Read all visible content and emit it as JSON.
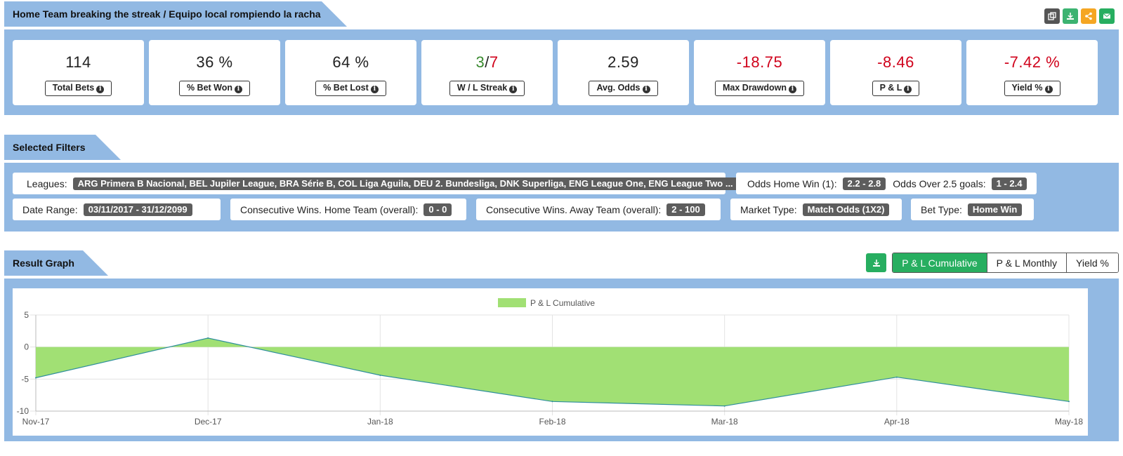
{
  "header": {
    "title": "Home Team breaking the streak / Equipo local rompiendo la racha",
    "toolbar": [
      {
        "icon": "copy-icon",
        "color": "#555555"
      },
      {
        "icon": "download-icon",
        "color": "#3cb371"
      },
      {
        "icon": "share-icon",
        "color": "#f5a623"
      },
      {
        "icon": "email-icon",
        "color": "#27ae60"
      }
    ]
  },
  "stats": {
    "total_bets": {
      "value": "114",
      "label": "Total Bets"
    },
    "bet_won": {
      "value": "36 %",
      "label": "% Bet Won"
    },
    "bet_lost": {
      "value": "64 %",
      "label": "% Bet Lost"
    },
    "streak": {
      "win": "3",
      "sep": "/",
      "loss": "7",
      "label": "W / L Streak"
    },
    "avg_odds": {
      "value": "2.59",
      "label": "Avg. Odds"
    },
    "max_drawdown": {
      "value": "-18.75",
      "label": "Max Drawdown"
    },
    "pl": {
      "value": "-8.46",
      "label": "P & L"
    },
    "yield": {
      "value": "-7.42 %",
      "label": "Yield %"
    }
  },
  "filters": {
    "title": "Selected Filters",
    "leagues_label": "Leagues:",
    "leagues_value": "ARG Primera B Nacional, BEL Jupiler League, BRA Série B, COL Liga Aguila, DEU 2. Bundesliga, DNK Superliga, ENG League One, ENG League Two ...",
    "odds_home_label": "Odds Home Win (1):",
    "odds_home_value": "2.2 - 2.8",
    "odds_over_label": "Odds Over 2.5 goals:",
    "odds_over_value": "1 - 2.4",
    "date_label": "Date Range:",
    "date_value": "03/11/2017 - 31/12/2099",
    "cons_home_label": "Consecutive Wins. Home Team (overall):",
    "cons_home_value": "0 - 0",
    "cons_away_label": "Consecutive Wins. Away Team (overall):",
    "cons_away_value": "2 - 100",
    "market_label": "Market Type:",
    "market_value": "Match Odds (1X2)",
    "bet_type_label": "Bet Type:",
    "bet_type_value": "Home Win"
  },
  "graph": {
    "title": "Result Graph",
    "buttons": [
      "P & L Cumulative",
      "P & L Monthly",
      "Yield %"
    ],
    "active": "P & L Cumulative"
  },
  "chart_data": {
    "type": "area",
    "x": [
      "Nov-17",
      "Dec-17",
      "Jan-18",
      "Feb-18",
      "Mar-18",
      "Apr-18",
      "May-18"
    ],
    "series": [
      {
        "name": "P & L Cumulative",
        "values": [
          -4.8,
          1.4,
          -4.4,
          -8.5,
          -9.2,
          -4.7,
          -8.5
        ],
        "color": "#a1e074",
        "line_color": "#2f8f9d"
      }
    ],
    "yticks": [
      5,
      0,
      -5,
      -10
    ],
    "ylim": [
      -10,
      5
    ],
    "grid": true,
    "legend": "top-center"
  }
}
